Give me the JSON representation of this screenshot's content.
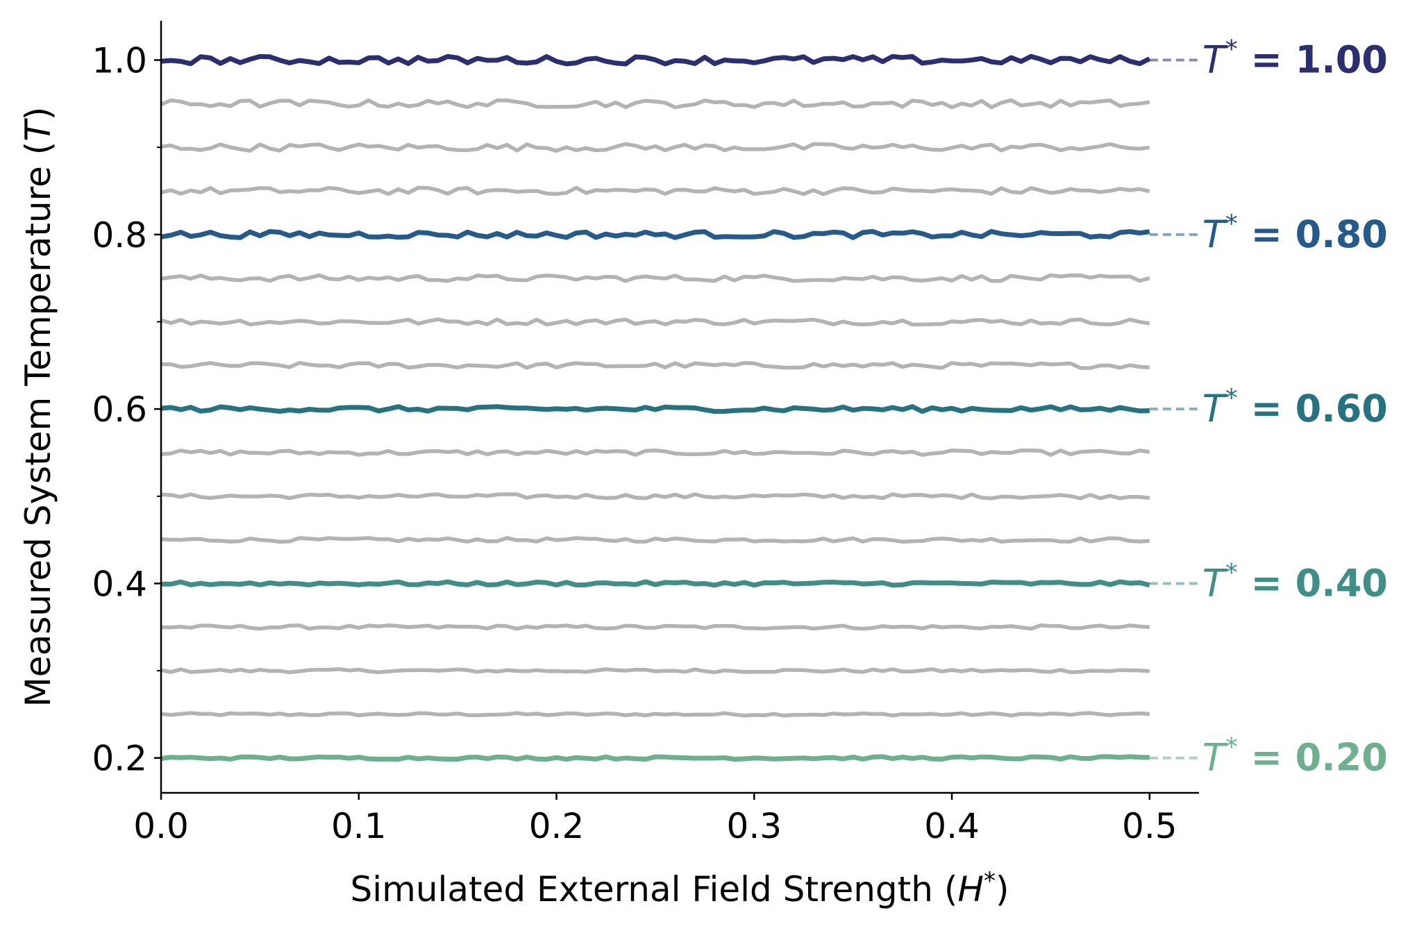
{
  "chart_data": {
    "type": "line",
    "title": "",
    "xlabel": "Simulated External Field Strength",
    "xlabel_symbol": "H",
    "ylabel": "Measured System Temperature",
    "ylabel_symbol": "T",
    "label_prefix": "T",
    "xlim": [
      0.0,
      0.525
    ],
    "ylim": [
      0.16,
      1.045
    ],
    "x_ticks": [
      "0.0",
      "0.1",
      "0.2",
      "0.3",
      "0.4",
      "0.5"
    ],
    "y_ticks": [
      "0.2",
      "0.4",
      "0.6",
      "0.8",
      "1.0"
    ],
    "x_range": [
      0.0,
      0.5
    ],
    "grid": false,
    "legend": "none",
    "background_color": "#b3b3b3",
    "series": [
      {
        "T_star": 0.2,
        "highlight": true,
        "name": "= 0.20",
        "color": "#6daf8f",
        "noise": 0.0015
      },
      {
        "T_star": 0.25,
        "highlight": false,
        "noise": 0.0015
      },
      {
        "T_star": 0.3,
        "highlight": false,
        "noise": 0.0018
      },
      {
        "T_star": 0.35,
        "highlight": false,
        "noise": 0.002
      },
      {
        "T_star": 0.4,
        "highlight": true,
        "name": "= 0.40",
        "color": "#418e89",
        "noise": 0.002
      },
      {
        "T_star": 0.45,
        "highlight": false,
        "noise": 0.0022
      },
      {
        "T_star": 0.5,
        "highlight": false,
        "noise": 0.0024
      },
      {
        "T_star": 0.55,
        "highlight": false,
        "noise": 0.0026
      },
      {
        "T_star": 0.6,
        "highlight": true,
        "name": "= 0.60",
        "color": "#267280",
        "noise": 0.0028
      },
      {
        "T_star": 0.65,
        "highlight": false,
        "noise": 0.003
      },
      {
        "T_star": 0.7,
        "highlight": false,
        "noise": 0.0032
      },
      {
        "T_star": 0.75,
        "highlight": false,
        "noise": 0.0034
      },
      {
        "T_star": 0.8,
        "highlight": true,
        "name": "= 0.80",
        "color": "#255a8a",
        "noise": 0.0036
      },
      {
        "T_star": 0.85,
        "highlight": false,
        "noise": 0.0038
      },
      {
        "T_star": 0.9,
        "highlight": false,
        "noise": 0.004
      },
      {
        "T_star": 0.95,
        "highlight": false,
        "noise": 0.0042
      },
      {
        "T_star": 1.0,
        "highlight": true,
        "name": "= 1.00",
        "color": "#2b2e6f",
        "noise": 0.0044
      }
    ]
  }
}
